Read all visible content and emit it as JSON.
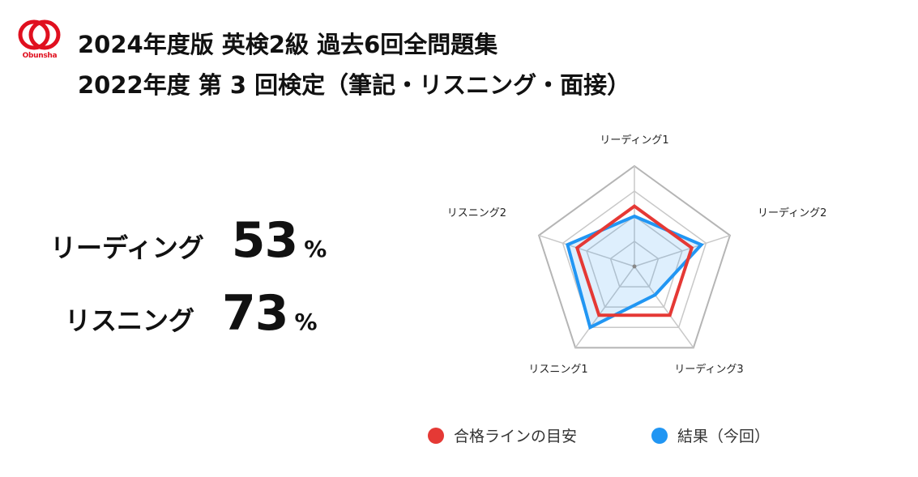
{
  "logo": {
    "text": "Obunsha",
    "color": "#e0101f"
  },
  "title": {
    "line1": "2024年度版 英検2級 過去6回全問題集",
    "line2": "2022年度 第 3 回検定（筆記・リスニング・面接）"
  },
  "scores": [
    {
      "label": "リーディング",
      "value": "53",
      "unit": "%"
    },
    {
      "label": "リスニング",
      "value": "73",
      "unit": "%"
    }
  ],
  "chart_data": {
    "type": "radar",
    "axes": [
      "リーディング1",
      "リーディング2",
      "リーディング3",
      "リスニング1",
      "リスニング2"
    ],
    "range": [
      0,
      100
    ],
    "grid_levels": 4,
    "series": [
      {
        "name": "合格ラインの目安",
        "values": [
          60,
          60,
          60,
          60,
          60
        ],
        "color": "#e53935",
        "fill": false
      },
      {
        "name": "結果（今回）",
        "values": [
          50,
          70,
          35,
          75,
          70
        ],
        "color": "#2196f3",
        "fill": true
      }
    ],
    "legend_position": "bottom"
  }
}
